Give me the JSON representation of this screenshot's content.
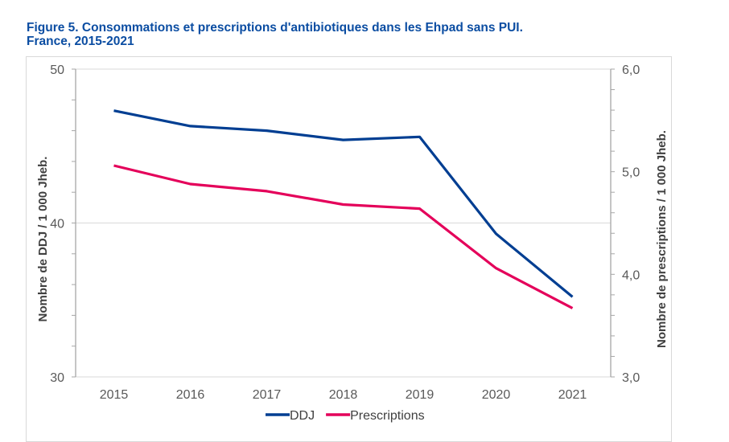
{
  "title": {
    "line1": "Figure 5. Consommations et prescriptions d'antibiotiques dans les Ehpad sans PUI.",
    "line2": "France, 2015-2021"
  },
  "chart_data": {
    "type": "line",
    "title": "Figure 5. Consommations et prescriptions d'antibiotiques dans les Ehpad sans PUI. France, 2015-2021",
    "categories": [
      "2015",
      "2016",
      "2017",
      "2018",
      "2019",
      "2020",
      "2021"
    ],
    "series": [
      {
        "name": "DDJ",
        "axis": "left",
        "color": "#003e92",
        "values": [
          47.3,
          46.3,
          46.0,
          45.4,
          45.6,
          39.3,
          35.2
        ]
      },
      {
        "name": "Prescriptions",
        "axis": "right",
        "color": "#e4005a",
        "values": [
          5.06,
          4.88,
          4.81,
          4.68,
          4.64,
          4.06,
          3.67
        ]
      }
    ],
    "y_left": {
      "label": "Nombre de DDJ / 1 000 Jheb.",
      "range": [
        30,
        50
      ],
      "major_ticks": [
        30,
        40,
        50
      ],
      "tick_labels": [
        "30",
        "40",
        "50"
      ],
      "minor_step": 2
    },
    "y_right": {
      "label": "Nombre de prescriptions / 1 000 Jheb.",
      "range": [
        3.0,
        6.0
      ],
      "major_ticks": [
        3.0,
        4.0,
        5.0,
        6.0
      ],
      "tick_labels": [
        "3,0",
        "4,0",
        "5,0",
        "6,0"
      ],
      "minor_step": 0.2
    },
    "xlabel": "",
    "grid": "horizontal major (left axis)",
    "legend": {
      "position": "bottom",
      "entries": [
        "DDJ",
        "Prescriptions"
      ]
    }
  }
}
